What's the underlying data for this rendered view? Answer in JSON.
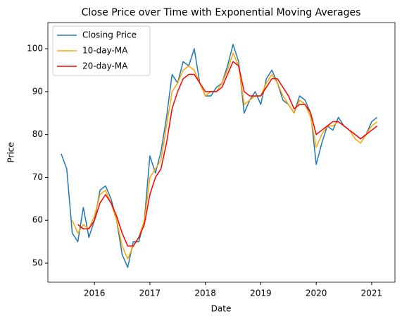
{
  "chart_data": {
    "type": "line",
    "title": "Close Price over Time with Exponential Moving Averages",
    "xlabel": "Date",
    "ylabel": "Price",
    "x": [
      2015.4,
      2015.5,
      2015.6,
      2015.7,
      2015.8,
      2015.9,
      2016.0,
      2016.1,
      2016.2,
      2016.3,
      2016.4,
      2016.5,
      2016.6,
      2016.7,
      2016.8,
      2016.9,
      2017.0,
      2017.1,
      2017.2,
      2017.3,
      2017.4,
      2017.5,
      2017.6,
      2017.7,
      2017.8,
      2017.9,
      2018.0,
      2018.1,
      2018.2,
      2018.3,
      2018.4,
      2018.5,
      2018.6,
      2018.7,
      2018.8,
      2018.9,
      2019.0,
      2019.1,
      2019.2,
      2019.3,
      2019.4,
      2019.5,
      2019.6,
      2019.7,
      2019.8,
      2019.9,
      2020.0,
      2020.1,
      2020.2,
      2020.3,
      2020.4,
      2020.5,
      2020.6,
      2020.7,
      2020.8,
      2020.9,
      2021.0,
      2021.1
    ],
    "series": [
      {
        "name": "Closing Price",
        "color": "#1f77b4",
        "values": [
          75.5,
          72,
          57,
          55,
          63,
          56,
          60,
          67,
          68,
          65,
          60,
          52,
          49,
          55,
          55,
          60,
          75,
          71,
          76,
          84,
          94,
          92,
          97,
          96,
          100,
          92,
          89,
          89,
          91,
          92,
          96,
          101,
          97,
          85,
          88,
          90,
          87,
          93,
          95,
          92,
          88,
          87,
          85,
          89,
          88,
          85,
          73,
          78,
          82,
          81,
          84,
          82,
          81,
          80,
          79,
          80,
          83,
          84
        ]
      },
      {
        "name": "10-day-MA",
        "color": "#ffa500",
        "values": [
          null,
          null,
          60,
          57,
          59,
          58,
          61,
          66,
          67,
          64,
          60,
          54,
          51,
          54,
          56,
          60,
          70,
          72,
          74,
          82,
          90,
          92,
          95,
          96,
          95,
          92,
          89,
          90,
          90,
          92,
          95,
          99,
          96,
          87,
          88,
          89,
          89,
          92,
          94,
          92,
          89,
          87,
          85,
          88,
          87,
          84,
          77,
          80,
          82,
          82,
          83,
          82,
          81,
          79,
          78,
          80,
          82,
          83
        ]
      },
      {
        "name": "20-day-MA",
        "color": "#ff0000",
        "values": [
          null,
          null,
          null,
          59,
          58,
          58,
          60,
          64,
          66,
          64,
          61,
          57,
          54,
          54,
          56,
          59,
          66,
          70,
          72,
          78,
          86,
          90,
          93,
          94,
          94,
          92,
          90,
          90,
          90,
          91,
          94,
          97,
          96,
          90,
          89,
          89,
          89,
          91,
          93,
          93,
          91,
          89,
          86,
          87,
          87,
          85,
          80,
          81,
          82,
          83,
          83,
          82,
          81,
          80,
          79,
          80,
          81,
          82
        ]
      }
    ],
    "xlim": [
      2015.16,
      2021.42
    ],
    "ylim": [
      45.56,
      106.1
    ],
    "xticks": [
      2016,
      2017,
      2018,
      2019,
      2020,
      2021
    ],
    "yticks": [
      50,
      60,
      70,
      80,
      90,
      100
    ],
    "grid": false,
    "legend": "upper left"
  }
}
